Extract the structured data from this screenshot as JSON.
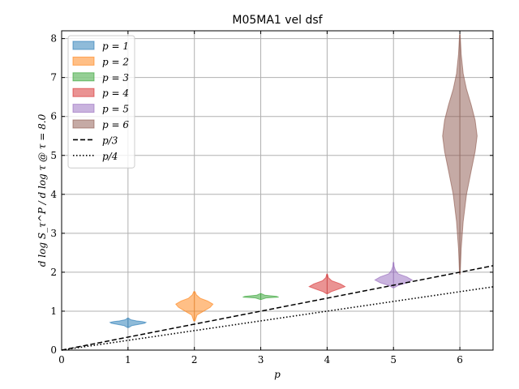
{
  "chart_data": {
    "type": "violin",
    "title": "M05MA1 vel dsf",
    "xlabel": "p",
    "ylabel": "d log S_τ^P / d log τ @ τ = 8.0",
    "xlim": [
      0,
      6.5
    ],
    "ylim": [
      0,
      8.2
    ],
    "xticks": [
      0,
      1,
      2,
      3,
      4,
      5,
      6
    ],
    "yticks": [
      0,
      1,
      2,
      3,
      4,
      5,
      6,
      7,
      8
    ],
    "grid": true,
    "legend_position": "top-left",
    "violins": [
      {
        "name": "p = 1",
        "x": 1,
        "color": "#1f77b4",
        "min": 0.58,
        "max": 0.82,
        "profile": [
          [
            0.58,
            0.01
          ],
          [
            0.63,
            0.06
          ],
          [
            0.66,
            0.16
          ],
          [
            0.69,
            0.25
          ],
          [
            0.71,
            0.27
          ],
          [
            0.73,
            0.22
          ],
          [
            0.75,
            0.13
          ],
          [
            0.78,
            0.04
          ],
          [
            0.82,
            0.01
          ]
        ]
      },
      {
        "name": "p = 2",
        "x": 2,
        "color": "#ff7f0e",
        "min": 0.75,
        "max": 1.5,
        "profile": [
          [
            0.75,
            0.01
          ],
          [
            0.9,
            0.04
          ],
          [
            1.0,
            0.14
          ],
          [
            1.1,
            0.24
          ],
          [
            1.18,
            0.28
          ],
          [
            1.26,
            0.2
          ],
          [
            1.33,
            0.09
          ],
          [
            1.42,
            0.03
          ],
          [
            1.5,
            0.01
          ]
        ]
      },
      {
        "name": "p = 3",
        "x": 3,
        "color": "#2ca02c",
        "min": 1.3,
        "max": 1.45,
        "profile": [
          [
            1.3,
            0.01
          ],
          [
            1.34,
            0.08
          ],
          [
            1.36,
            0.27
          ],
          [
            1.38,
            0.24
          ],
          [
            1.41,
            0.06
          ],
          [
            1.45,
            0.01
          ]
        ]
      },
      {
        "name": "p = 4",
        "x": 4,
        "color": "#d62728",
        "min": 1.45,
        "max": 1.95,
        "profile": [
          [
            1.45,
            0.01
          ],
          [
            1.5,
            0.06
          ],
          [
            1.56,
            0.16
          ],
          [
            1.63,
            0.27
          ],
          [
            1.7,
            0.2
          ],
          [
            1.78,
            0.07
          ],
          [
            1.86,
            0.02
          ],
          [
            1.95,
            0.005
          ]
        ]
      },
      {
        "name": "p = 5",
        "x": 5,
        "color": "#9467bd",
        "min": 1.6,
        "max": 2.25,
        "profile": [
          [
            1.6,
            0.01
          ],
          [
            1.66,
            0.07
          ],
          [
            1.73,
            0.2
          ],
          [
            1.8,
            0.28
          ],
          [
            1.88,
            0.2
          ],
          [
            1.96,
            0.07
          ],
          [
            2.05,
            0.03
          ],
          [
            2.15,
            0.01
          ],
          [
            2.25,
            0.005
          ]
        ]
      },
      {
        "name": "p = 6",
        "x": 6,
        "color": "#8c564b",
        "min": 1.95,
        "max": 8.1,
        "profile": [
          [
            1.95,
            0.005
          ],
          [
            2.6,
            0.02
          ],
          [
            3.3,
            0.05
          ],
          [
            4.0,
            0.1
          ],
          [
            4.6,
            0.17
          ],
          [
            5.1,
            0.23
          ],
          [
            5.5,
            0.26
          ],
          [
            5.9,
            0.23
          ],
          [
            6.3,
            0.17
          ],
          [
            6.7,
            0.1
          ],
          [
            7.1,
            0.05
          ],
          [
            7.6,
            0.02
          ],
          [
            8.1,
            0.005
          ]
        ]
      }
    ],
    "lines": [
      {
        "name": "p/3",
        "slope": 0.3333333,
        "style": "dashed",
        "color": "#000000"
      },
      {
        "name": "p/4",
        "slope": 0.25,
        "style": "dotted",
        "color": "#000000"
      }
    ]
  }
}
